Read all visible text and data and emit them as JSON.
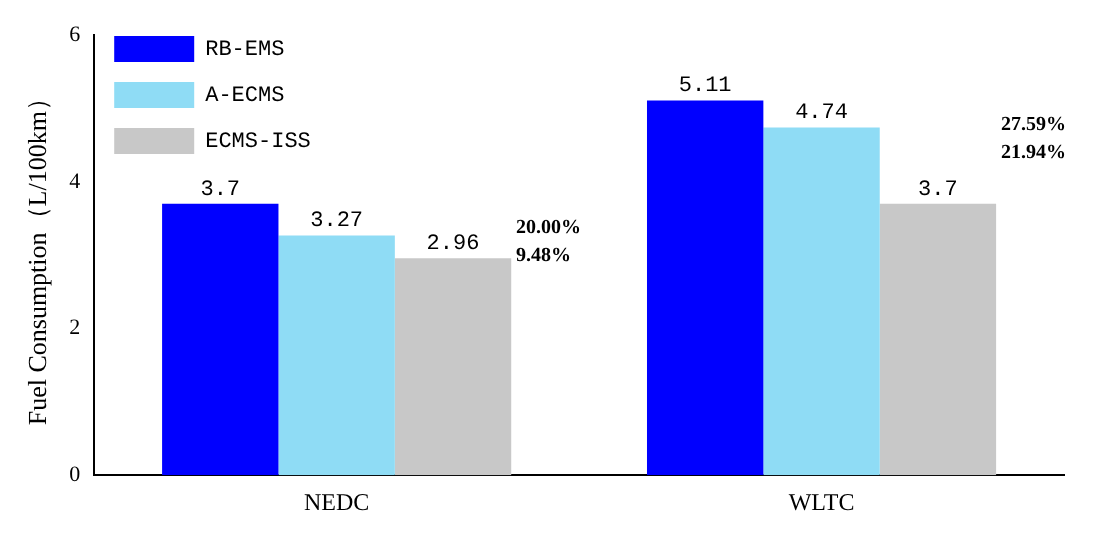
{
  "chart_data": {
    "type": "bar",
    "ylabel": "Fuel Consumption（L/100km）",
    "categories": [
      "NEDC",
      "WLTC"
    ],
    "series": [
      {
        "name": "RB-EMS",
        "color": "#0000ff",
        "values": [
          3.7,
          5.11
        ]
      },
      {
        "name": "A-ECMS",
        "color": "#8fdcf5",
        "values": [
          3.27,
          4.74
        ]
      },
      {
        "name": "ECMS-ISS",
        "color": "#c8c8c8",
        "values": [
          2.96,
          3.7
        ]
      }
    ],
    "ylim": [
      0,
      6
    ],
    "yticks": [
      0,
      2,
      4,
      6
    ],
    "grid": false,
    "legend": "top left",
    "data_labels": true,
    "annotations": [
      "20.00%",
      "9.48%",
      "27.59%",
      "21.94%"
    ]
  }
}
